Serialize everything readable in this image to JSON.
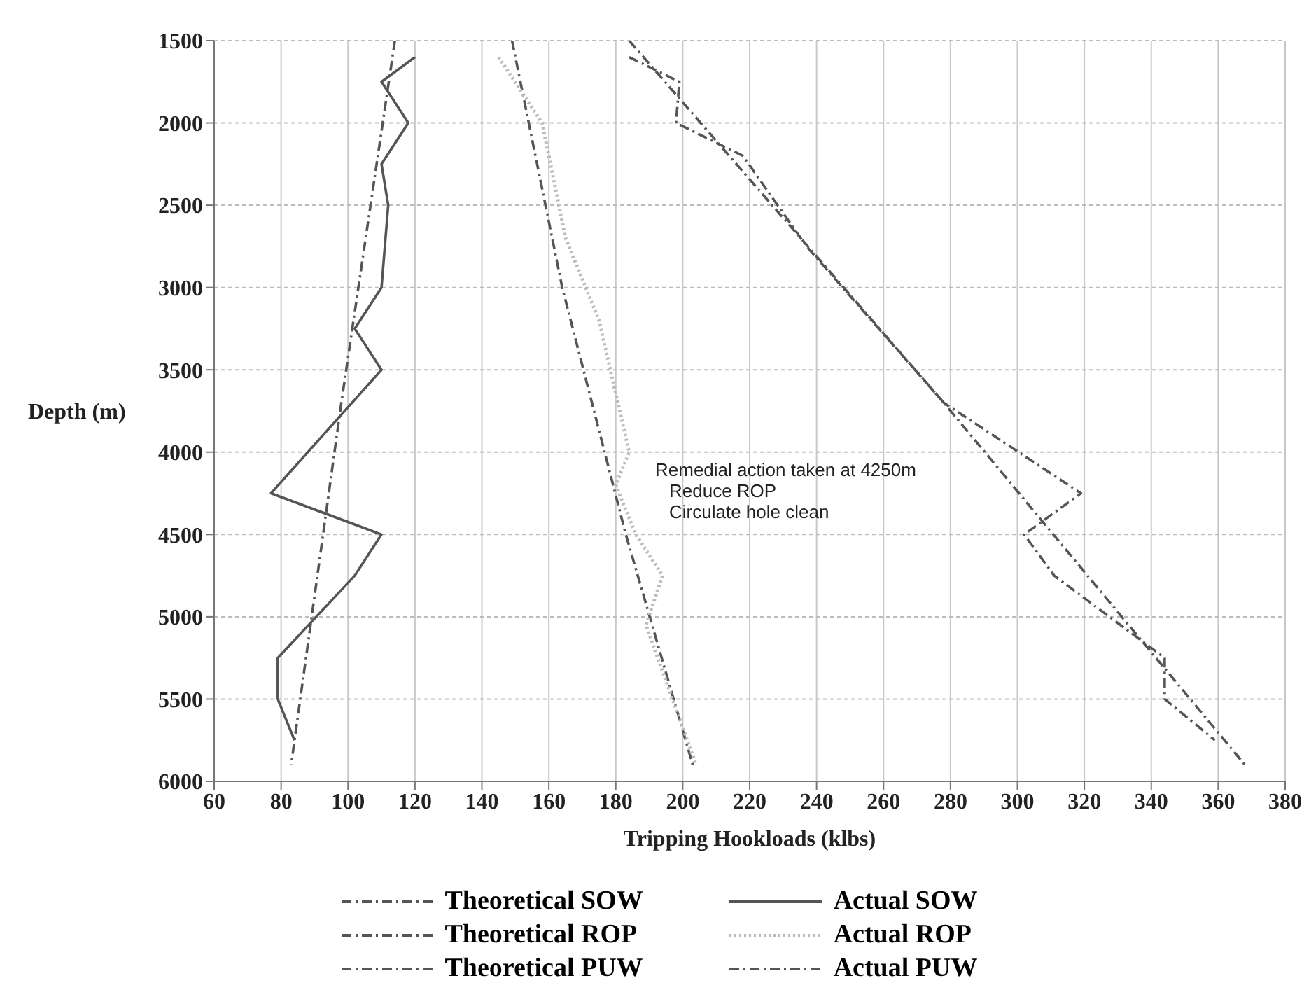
{
  "chart_data": {
    "type": "line",
    "xlabel": "Tripping Hookloads (klbs)",
    "ylabel": "Depth (m)",
    "xlim": [
      60,
      380
    ],
    "xticks": [
      60,
      80,
      100,
      120,
      140,
      160,
      180,
      200,
      220,
      240,
      260,
      280,
      300,
      320,
      340,
      360,
      380
    ],
    "ylim": [
      6000,
      1500
    ],
    "yticks": [
      1500,
      2000,
      2500,
      3000,
      3500,
      4000,
      4500,
      5000,
      5500,
      6000
    ],
    "grid": true,
    "legend": "bottom",
    "marker": "none",
    "annotations": [
      "Remedial action taken at 4250m",
      "Reduce ROP",
      "Circulate hole clean"
    ],
    "series": [
      {
        "name": "Theoretical SOW",
        "color": "#555555",
        "line_style": "dashed",
        "x": [
          114,
          98,
          83
        ],
        "values": [
          1500,
          3700,
          5900
        ]
      },
      {
        "name": "Theoretical ROP",
        "color": "#555555",
        "line_style": "dashed",
        "x": [
          149,
          164,
          183,
          203
        ],
        "values": [
          1500,
          3000,
          4500,
          5900
        ]
      },
      {
        "name": "Theoretical PUW",
        "color": "#555555",
        "line_style": "dashed",
        "x": [
          184,
          278,
          368
        ],
        "values": [
          1500,
          3700,
          5900
        ]
      },
      {
        "name": "Actual SOW",
        "color": "#555555",
        "line_style": "solid",
        "x": [
          120,
          110,
          118,
          110,
          112,
          110,
          102,
          110,
          77,
          110,
          102,
          79,
          79,
          84
        ],
        "values": [
          1600,
          1750,
          2000,
          2250,
          2500,
          3000,
          3250,
          3500,
          4250,
          4500,
          4750,
          5250,
          5500,
          5750
        ]
      },
      {
        "name": "Actual ROP",
        "color": "#bbbbbb",
        "line_style": "dotted",
        "x": [
          145,
          158,
          165,
          175,
          184,
          180,
          186,
          194,
          189,
          204
        ],
        "values": [
          1600,
          2000,
          2700,
          3200,
          4000,
          4200,
          4500,
          4750,
          5050,
          5900
        ]
      },
      {
        "name": "Actual PUW",
        "color": "#555555",
        "line_style": "dashed",
        "x": [
          184,
          199,
          198,
          218,
          237,
          278,
          319,
          302,
          311,
          344,
          344,
          359
        ],
        "values": [
          1600,
          1750,
          2000,
          2200,
          2750,
          3700,
          4250,
          4500,
          4750,
          5250,
          5500,
          5750
        ]
      }
    ]
  }
}
